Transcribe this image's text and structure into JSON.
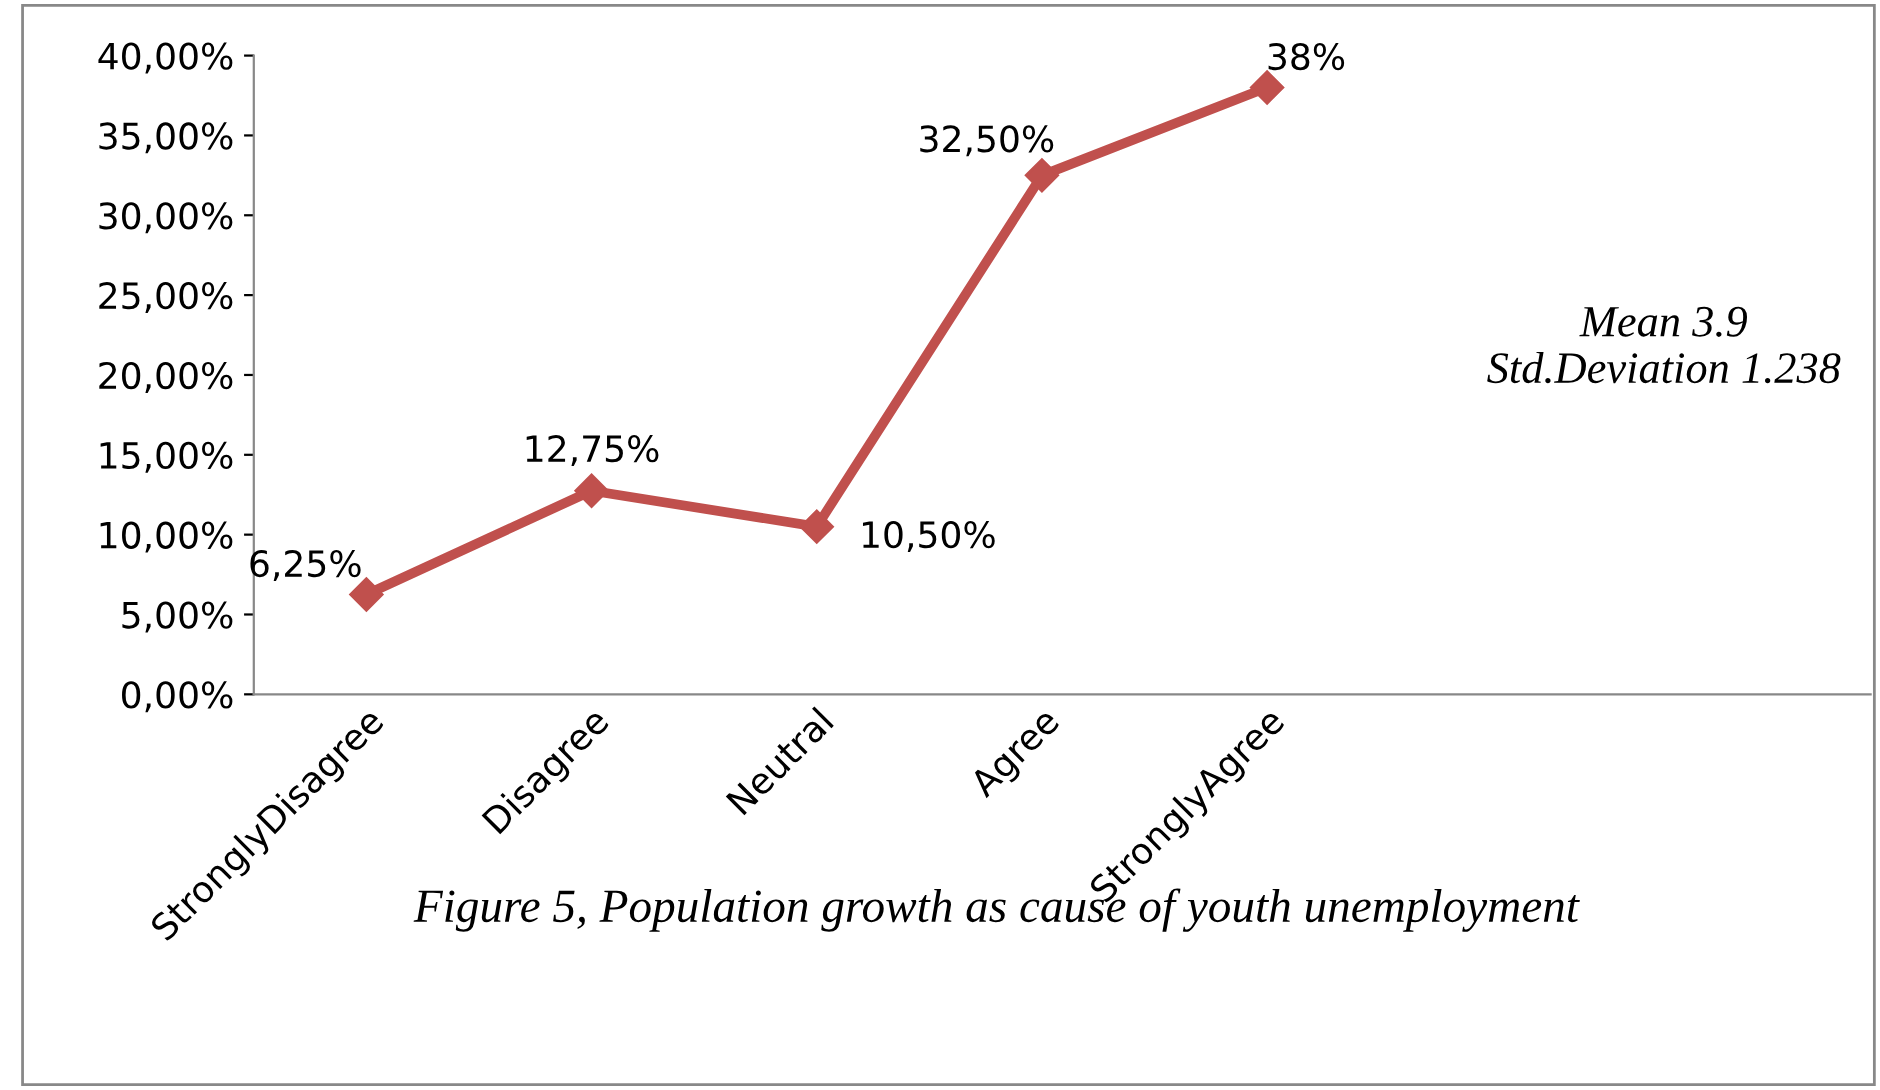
{
  "chart_data": {
    "type": "line",
    "categories": [
      "StronglyDisagree",
      "Disagree",
      "Neutral",
      "Agree",
      "StronglyAgree"
    ],
    "series": [
      {
        "color": "#c0504d",
        "values": [
          6.25,
          12.75,
          10.5,
          32.5,
          38
        ],
        "value_labels": [
          "6,25%",
          "12,75%",
          "10,50%",
          "32,50%",
          "38%"
        ]
      }
    ],
    "ylim": [
      0,
      40
    ],
    "yticks": [
      {
        "value": 0,
        "label": "0,00%"
      },
      {
        "value": 5,
        "label": "5,00%"
      },
      {
        "value": 10,
        "label": "10,00%"
      },
      {
        "value": 15,
        "label": "15,00%"
      },
      {
        "value": 20,
        "label": "20,00%"
      },
      {
        "value": 25,
        "label": "25,00%"
      },
      {
        "value": 30,
        "label": "30,00%"
      },
      {
        "value": 35,
        "label": "35,00%"
      },
      {
        "value": 40,
        "label": "40,00%"
      }
    ],
    "marker": "diamond",
    "line_style": "solid",
    "grid": false,
    "legend": false,
    "annotations": [
      "Mean 3.9\nStd.Deviation 1.238",
      "Figure 5, Population growth as cause of youth unemployment"
    ]
  }
}
